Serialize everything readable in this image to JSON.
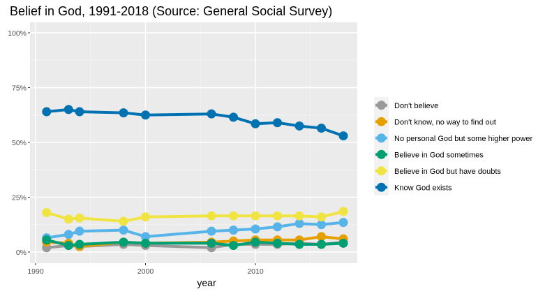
{
  "chart_data": {
    "type": "line",
    "title": "Belief in God, 1991-2018 (Source: General Social Survey)",
    "xlabel": "year",
    "ylabel": "",
    "xlim": [
      1990,
      2019
    ],
    "ylim": [
      0,
      1
    ],
    "x_ticks": [
      {
        "value": 1990,
        "label": "1990"
      },
      {
        "value": 2000,
        "label": "2000"
      },
      {
        "value": 2010,
        "label": "2010"
      }
    ],
    "y_ticks": [
      {
        "value": 0,
        "label": "0%"
      },
      {
        "value": 0.25,
        "label": "25%"
      },
      {
        "value": 0.5,
        "label": "50%"
      },
      {
        "value": 0.75,
        "label": "75%"
      },
      {
        "value": 1.0,
        "label": "100%"
      }
    ],
    "grid": true,
    "legend_position": "right",
    "x": [
      1991,
      1993,
      1994,
      1998,
      2000,
      2006,
      2008,
      2010,
      2012,
      2014,
      2016,
      2018
    ],
    "series": [
      {
        "name": "Don't believe",
        "color": "#999999",
        "values": [
          0.02,
          0.03,
          0.025,
          0.035,
          0.03,
          0.02,
          0.035,
          0.035,
          0.035,
          0.04,
          0.035,
          0.045
        ]
      },
      {
        "name": "Don't know, no way to find out",
        "color": "#E69F00",
        "values": [
          0.045,
          0.04,
          0.025,
          0.045,
          0.04,
          0.045,
          0.05,
          0.055,
          0.055,
          0.055,
          0.07,
          0.06
        ]
      },
      {
        "name": "No personal God but some higher power",
        "color": "#56B4E9",
        "values": [
          0.065,
          0.08,
          0.095,
          0.1,
          0.07,
          0.095,
          0.1,
          0.105,
          0.115,
          0.13,
          0.125,
          0.135
        ]
      },
      {
        "name": "Believe in God sometimes",
        "color": "#009E73",
        "values": [
          0.055,
          0.03,
          0.035,
          0.045,
          0.04,
          0.04,
          0.03,
          0.045,
          0.04,
          0.035,
          0.035,
          0.04
        ]
      },
      {
        "name": "Believe in God but have doubts",
        "color": "#F0E442",
        "values": [
          0.18,
          0.15,
          0.155,
          0.14,
          0.16,
          0.165,
          0.165,
          0.165,
          0.165,
          0.165,
          0.16,
          0.185
        ]
      },
      {
        "name": "Know God exists",
        "color": "#0072B2",
        "values": [
          0.64,
          0.65,
          0.64,
          0.635,
          0.625,
          0.63,
          0.615,
          0.585,
          0.59,
          0.575,
          0.565,
          0.53
        ]
      }
    ]
  }
}
